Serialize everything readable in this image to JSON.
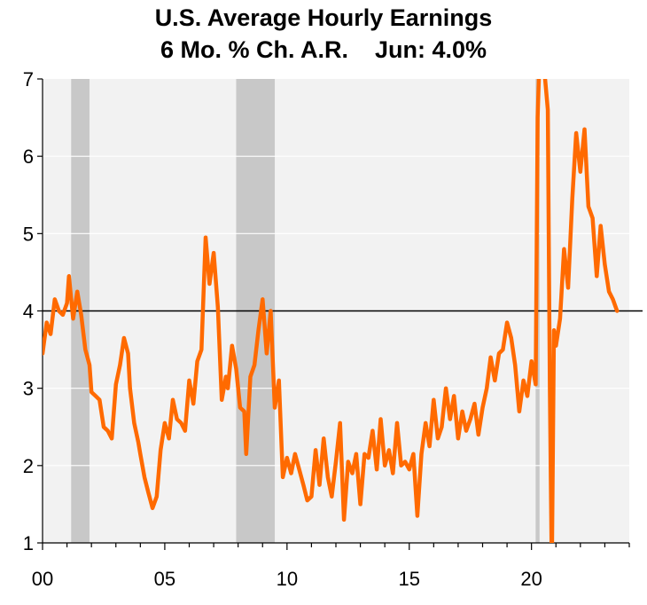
{
  "chart_data": {
    "type": "line",
    "title": "U.S. Average Hourly Earnings",
    "subtitle": "6 Mo. % Ch. A.R.    Jun: 4.0%",
    "ylim": [
      1,
      7
    ],
    "xlim": [
      2000,
      2024
    ],
    "y_ticks": [
      "1",
      "2",
      "3",
      "4",
      "5",
      "6",
      "7"
    ],
    "x_ticks": [
      {
        "value": 2000,
        "label": "00"
      },
      {
        "value": 2005,
        "label": "05"
      },
      {
        "value": 2010,
        "label": "10"
      },
      {
        "value": 2015,
        "label": "15"
      },
      {
        "value": 2020,
        "label": "20"
      }
    ],
    "reference_line": 4.0,
    "recessions": [
      [
        2001.17,
        2001.92
      ],
      [
        2007.92,
        2009.5
      ],
      [
        2020.17,
        2020.33
      ]
    ],
    "grid": "horizontal",
    "line_color": "#ff6a00",
    "recession_color": "#c8c8c8",
    "background_color": "#f2f2f2",
    "series": [
      {
        "points": [
          [
            2000.0,
            3.45
          ],
          [
            2000.17,
            3.85
          ],
          [
            2000.33,
            3.7
          ],
          [
            2000.5,
            4.15
          ],
          [
            2000.67,
            4.0
          ],
          [
            2000.83,
            3.95
          ],
          [
            2001.0,
            4.1
          ],
          [
            2001.08,
            4.45
          ],
          [
            2001.25,
            3.9
          ],
          [
            2001.42,
            4.25
          ],
          [
            2001.58,
            3.95
          ],
          [
            2001.75,
            3.5
          ],
          [
            2001.92,
            3.3
          ],
          [
            2002.0,
            2.95
          ],
          [
            2002.17,
            2.9
          ],
          [
            2002.33,
            2.85
          ],
          [
            2002.5,
            2.5
          ],
          [
            2002.67,
            2.45
          ],
          [
            2002.83,
            2.35
          ],
          [
            2003.0,
            3.05
          ],
          [
            2003.17,
            3.3
          ],
          [
            2003.33,
            3.65
          ],
          [
            2003.5,
            3.45
          ],
          [
            2003.58,
            3.0
          ],
          [
            2003.75,
            2.55
          ],
          [
            2003.92,
            2.3
          ],
          [
            2004.0,
            2.15
          ],
          [
            2004.17,
            1.85
          ],
          [
            2004.33,
            1.65
          ],
          [
            2004.5,
            1.45
          ],
          [
            2004.67,
            1.6
          ],
          [
            2004.83,
            2.2
          ],
          [
            2005.0,
            2.55
          ],
          [
            2005.17,
            2.35
          ],
          [
            2005.33,
            2.85
          ],
          [
            2005.5,
            2.6
          ],
          [
            2005.67,
            2.55
          ],
          [
            2005.83,
            2.45
          ],
          [
            2006.0,
            3.1
          ],
          [
            2006.17,
            2.8
          ],
          [
            2006.33,
            3.35
          ],
          [
            2006.5,
            3.5
          ],
          [
            2006.67,
            4.95
          ],
          [
            2006.83,
            4.35
          ],
          [
            2007.0,
            4.75
          ],
          [
            2007.17,
            4.05
          ],
          [
            2007.33,
            2.85
          ],
          [
            2007.5,
            3.15
          ],
          [
            2007.58,
            3.0
          ],
          [
            2007.75,
            3.55
          ],
          [
            2007.92,
            3.25
          ],
          [
            2008.08,
            2.75
          ],
          [
            2008.25,
            2.7
          ],
          [
            2008.33,
            2.15
          ],
          [
            2008.5,
            3.15
          ],
          [
            2008.67,
            3.3
          ],
          [
            2008.83,
            3.75
          ],
          [
            2009.0,
            4.15
          ],
          [
            2009.17,
            3.45
          ],
          [
            2009.33,
            4.0
          ],
          [
            2009.5,
            2.75
          ],
          [
            2009.67,
            3.1
          ],
          [
            2009.83,
            1.85
          ],
          [
            2010.0,
            2.1
          ],
          [
            2010.17,
            1.9
          ],
          [
            2010.33,
            2.15
          ],
          [
            2010.5,
            1.95
          ],
          [
            2010.67,
            1.75
          ],
          [
            2010.83,
            1.55
          ],
          [
            2011.0,
            1.6
          ],
          [
            2011.17,
            2.2
          ],
          [
            2011.33,
            1.75
          ],
          [
            2011.5,
            2.35
          ],
          [
            2011.67,
            1.85
          ],
          [
            2011.83,
            1.6
          ],
          [
            2012.0,
            2.05
          ],
          [
            2012.17,
            2.55
          ],
          [
            2012.33,
            1.3
          ],
          [
            2012.5,
            2.05
          ],
          [
            2012.67,
            1.9
          ],
          [
            2012.83,
            2.15
          ],
          [
            2013.0,
            1.5
          ],
          [
            2013.17,
            2.15
          ],
          [
            2013.33,
            2.1
          ],
          [
            2013.5,
            2.45
          ],
          [
            2013.67,
            1.95
          ],
          [
            2013.83,
            2.6
          ],
          [
            2014.0,
            2.0
          ],
          [
            2014.17,
            2.2
          ],
          [
            2014.33,
            1.9
          ],
          [
            2014.5,
            2.55
          ],
          [
            2014.67,
            2.0
          ],
          [
            2014.83,
            2.05
          ],
          [
            2015.0,
            1.95
          ],
          [
            2015.17,
            2.15
          ],
          [
            2015.33,
            1.35
          ],
          [
            2015.5,
            2.15
          ],
          [
            2015.67,
            2.55
          ],
          [
            2015.83,
            2.25
          ],
          [
            2016.0,
            2.85
          ],
          [
            2016.17,
            2.35
          ],
          [
            2016.33,
            2.5
          ],
          [
            2016.5,
            3.0
          ],
          [
            2016.67,
            2.6
          ],
          [
            2016.83,
            2.9
          ],
          [
            2017.0,
            2.35
          ],
          [
            2017.17,
            2.7
          ],
          [
            2017.33,
            2.45
          ],
          [
            2017.5,
            2.6
          ],
          [
            2017.67,
            2.8
          ],
          [
            2017.83,
            2.4
          ],
          [
            2018.0,
            2.75
          ],
          [
            2018.17,
            3.0
          ],
          [
            2018.33,
            3.4
          ],
          [
            2018.5,
            3.1
          ],
          [
            2018.67,
            3.45
          ],
          [
            2018.83,
            3.5
          ],
          [
            2019.0,
            3.85
          ],
          [
            2019.17,
            3.65
          ],
          [
            2019.33,
            3.3
          ],
          [
            2019.5,
            2.7
          ],
          [
            2019.67,
            3.1
          ],
          [
            2019.83,
            2.9
          ],
          [
            2020.0,
            3.35
          ],
          [
            2020.17,
            3.05
          ],
          [
            2020.25,
            6.5
          ],
          [
            2020.33,
            7.3
          ],
          [
            2020.5,
            7.2
          ],
          [
            2020.67,
            6.6
          ],
          [
            2020.75,
            3.0
          ],
          [
            2020.83,
            0.6
          ],
          [
            2020.92,
            3.75
          ],
          [
            2021.0,
            3.55
          ],
          [
            2021.17,
            3.9
          ],
          [
            2021.33,
            4.8
          ],
          [
            2021.5,
            4.3
          ],
          [
            2021.67,
            5.45
          ],
          [
            2021.83,
            6.3
          ],
          [
            2022.0,
            5.8
          ],
          [
            2022.17,
            6.35
          ],
          [
            2022.33,
            5.35
          ],
          [
            2022.5,
            5.2
          ],
          [
            2022.67,
            4.45
          ],
          [
            2022.83,
            5.1
          ],
          [
            2023.0,
            4.6
          ],
          [
            2023.17,
            4.25
          ],
          [
            2023.33,
            4.15
          ],
          [
            2023.5,
            4.0
          ]
        ]
      }
    ]
  }
}
